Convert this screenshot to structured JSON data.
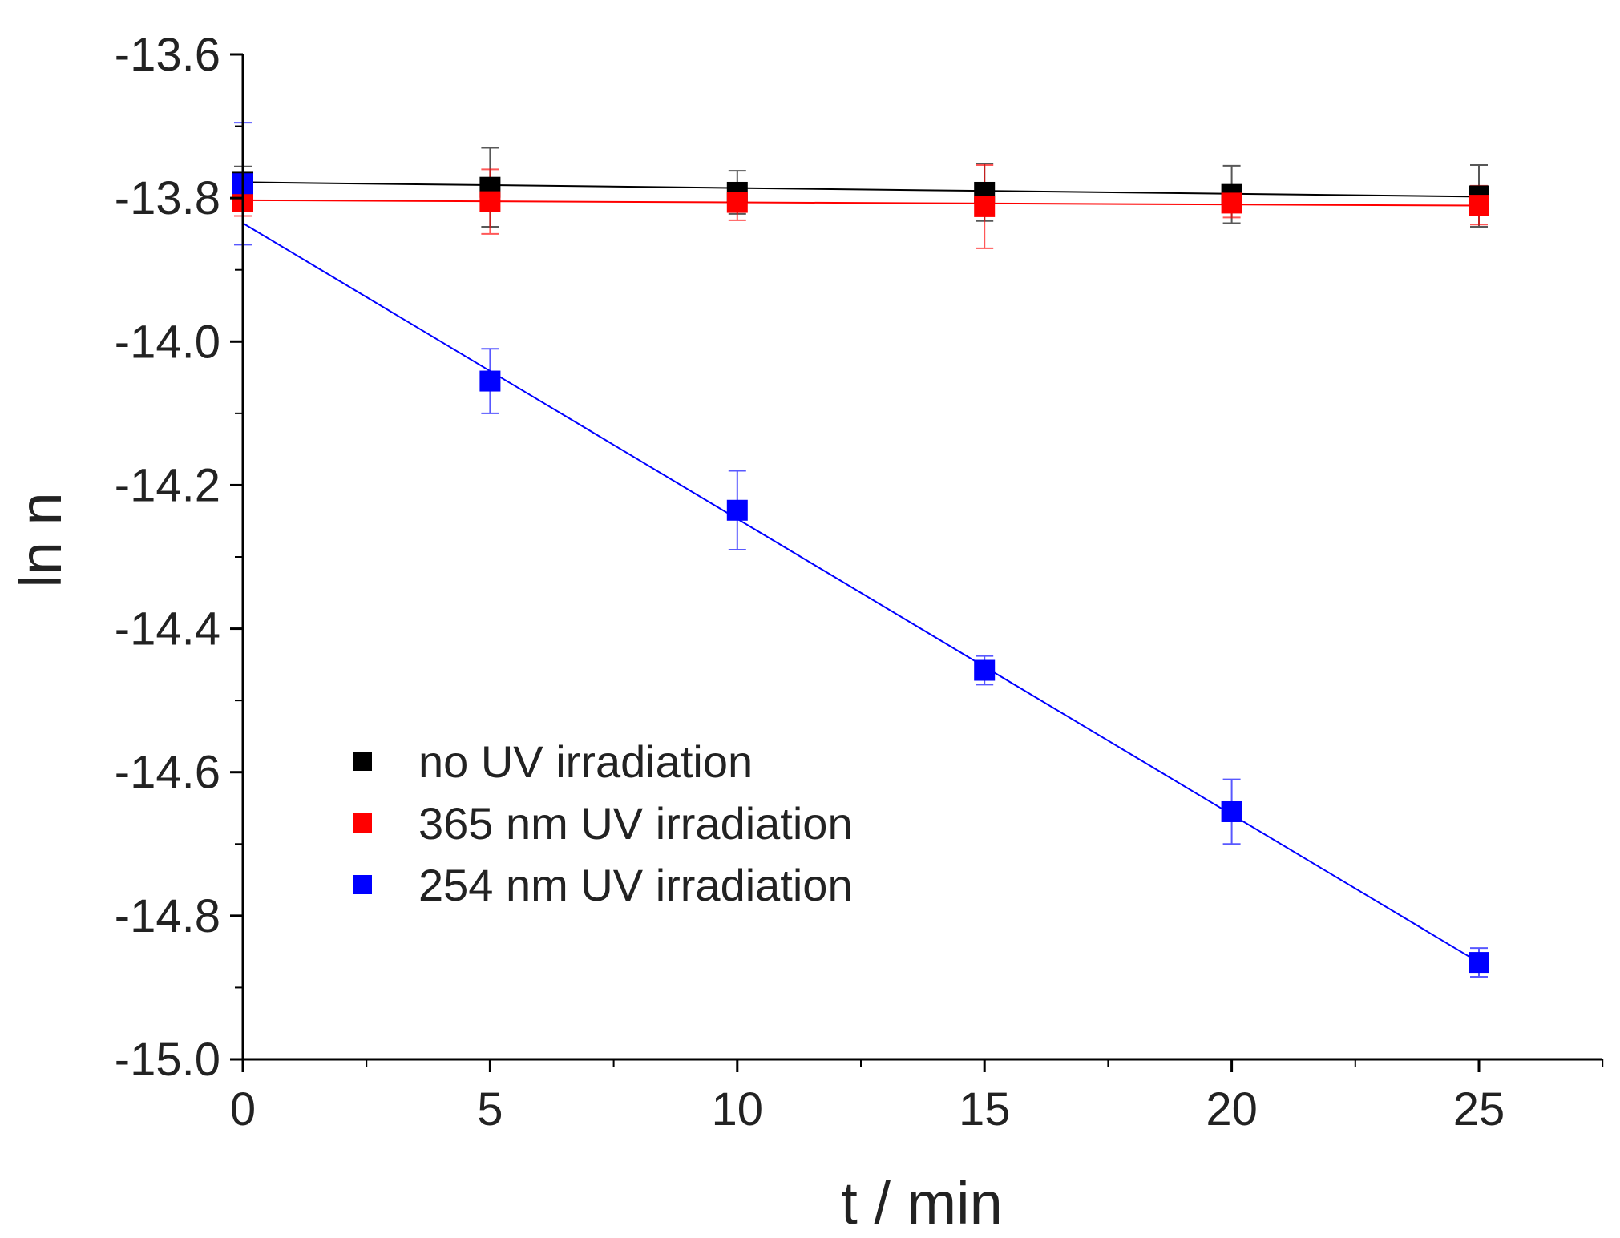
{
  "chart_data": {
    "type": "scatter",
    "title": "",
    "xlabel": "t / min",
    "ylabel": "ln n",
    "xlim": [
      0,
      27.5
    ],
    "ylim": [
      -15.0,
      -13.6
    ],
    "x_ticks": [
      0,
      5,
      10,
      15,
      20,
      25
    ],
    "x_tick_labels": [
      "0",
      "5",
      "10",
      "15",
      "20",
      "25"
    ],
    "y_ticks": [
      -15.0,
      -14.8,
      -14.6,
      -14.4,
      -14.2,
      -14.0,
      -13.8,
      -13.6
    ],
    "y_tick_labels": [
      "-15.0",
      "-14.8",
      "-14.6",
      "-14.4",
      "-14.2",
      "-14.0",
      "-13.8",
      "-13.6"
    ],
    "grid": false,
    "legend_position": "lower-left",
    "series": [
      {
        "name": "no UV irradiation",
        "color": "#000000",
        "x": [
          0,
          5,
          10,
          15,
          20,
          25
        ],
        "y": [
          -13.778,
          -13.785,
          -13.792,
          -13.792,
          -13.795,
          -13.797
        ],
        "error": [
          0.022,
          0.055,
          0.03,
          0.04,
          0.04,
          0.043
        ],
        "fit": {
          "intercept": -13.778,
          "slope": -0.0008
        }
      },
      {
        "name": "365 nm UV irradiation",
        "color": "#ff0000",
        "x": [
          0,
          5,
          10,
          15,
          20,
          25
        ],
        "y": [
          -13.805,
          -13.805,
          -13.806,
          -13.812,
          -13.807,
          -13.81
        ],
        "error": [
          0.02,
          0.045,
          0.025,
          0.058,
          0.02,
          0.027
        ],
        "fit": {
          "intercept": -13.803,
          "slope": -0.0003
        }
      },
      {
        "name": "254 nm UV irradiation",
        "color": "#0000ff",
        "x": [
          0,
          5,
          10,
          15,
          20,
          25
        ],
        "y": [
          -13.78,
          -14.055,
          -14.235,
          -14.458,
          -14.655,
          -14.865
        ],
        "error": [
          0.085,
          0.045,
          0.055,
          0.02,
          0.045,
          0.02
        ],
        "fit": {
          "intercept": -13.835,
          "slope": -0.0412
        }
      }
    ]
  }
}
